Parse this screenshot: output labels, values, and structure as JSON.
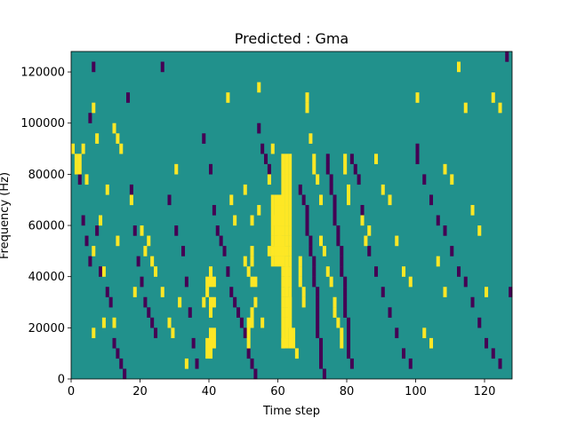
{
  "chart_data": {
    "type": "heatmap",
    "title": "Predicted : Gma",
    "xlabel": "Time step",
    "ylabel": "Frequency (Hz)",
    "xlim": [
      0,
      128
    ],
    "ylim": [
      0,
      128000
    ],
    "x_ticks": [
      0,
      20,
      40,
      60,
      80,
      100,
      120
    ],
    "x_tick_labels": [
      "0",
      "20",
      "40",
      "60",
      "80",
      "100",
      "120"
    ],
    "y_ticks": [
      0,
      20000,
      40000,
      60000,
      80000,
      100000,
      120000
    ],
    "y_tick_labels": [
      "0",
      "20000",
      "40000",
      "60000",
      "80000",
      "100000",
      "120000"
    ],
    "grid": false,
    "colormap": "viridis",
    "colors": {
      "background": "#21918c",
      "low": "#440154",
      "high": "#fde725"
    },
    "bin_size": {
      "time": 1,
      "frequency": 4000
    },
    "high_bins": [
      [
        0,
        88000
      ],
      [
        1,
        84000
      ],
      [
        1,
        80000
      ],
      [
        2,
        84000
      ],
      [
        2,
        80000
      ],
      [
        3,
        88000
      ],
      [
        4,
        76000
      ],
      [
        6,
        104000
      ],
      [
        6,
        48000
      ],
      [
        6,
        16000
      ],
      [
        7,
        92000
      ],
      [
        8,
        60000
      ],
      [
        9,
        40000
      ],
      [
        9,
        20000
      ],
      [
        10,
        72000
      ],
      [
        12,
        96000
      ],
      [
        12,
        20000
      ],
      [
        13,
        92000
      ],
      [
        13,
        52000
      ],
      [
        14,
        88000
      ],
      [
        17,
        68000
      ],
      [
        18,
        32000
      ],
      [
        20,
        56000
      ],
      [
        21,
        48000
      ],
      [
        22,
        52000
      ],
      [
        23,
        44000
      ],
      [
        24,
        40000
      ],
      [
        26,
        32000
      ],
      [
        28,
        20000
      ],
      [
        29,
        16000
      ],
      [
        30,
        80000
      ],
      [
        31,
        28000
      ],
      [
        33,
        4000
      ],
      [
        38,
        28000
      ],
      [
        39,
        36000
      ],
      [
        39,
        32000
      ],
      [
        39,
        12000
      ],
      [
        39,
        8000
      ],
      [
        40,
        40000
      ],
      [
        40,
        36000
      ],
      [
        40,
        28000
      ],
      [
        40,
        24000
      ],
      [
        40,
        16000
      ],
      [
        40,
        12000
      ],
      [
        40,
        8000
      ],
      [
        41,
        36000
      ],
      [
        41,
        28000
      ],
      [
        41,
        16000
      ],
      [
        41,
        12000
      ],
      [
        45,
        108000
      ],
      [
        46,
        68000
      ],
      [
        47,
        60000
      ],
      [
        50,
        72000
      ],
      [
        50,
        44000
      ],
      [
        51,
        40000
      ],
      [
        51,
        20000
      ],
      [
        51,
        16000
      ],
      [
        51,
        12000
      ],
      [
        52,
        60000
      ],
      [
        52,
        48000
      ],
      [
        52,
        44000
      ],
      [
        52,
        36000
      ],
      [
        52,
        24000
      ],
      [
        52,
        20000
      ],
      [
        53,
        36000
      ],
      [
        53,
        28000
      ],
      [
        54,
        112000
      ],
      [
        54,
        64000
      ],
      [
        55,
        20000
      ],
      [
        57,
        76000
      ],
      [
        57,
        48000
      ],
      [
        58,
        88000
      ],
      [
        59,
        60000
      ],
      [
        59,
        48000
      ],
      [
        60,
        52000
      ],
      [
        60,
        48000
      ],
      [
        61,
        48000
      ],
      [
        61,
        12000
      ],
      [
        62,
        40000
      ],
      [
        62,
        36000
      ],
      [
        63,
        28000
      ],
      [
        63,
        24000
      ],
      [
        63,
        20000
      ],
      [
        64,
        16000
      ],
      [
        64,
        12000
      ],
      [
        65,
        8000
      ],
      [
        66,
        44000
      ],
      [
        66,
        40000
      ],
      [
        66,
        36000
      ],
      [
        67,
        32000
      ],
      [
        67,
        28000
      ],
      [
        68,
        108000
      ],
      [
        68,
        104000
      ],
      [
        69,
        92000
      ],
      [
        70,
        84000
      ],
      [
        70,
        80000
      ],
      [
        71,
        76000
      ],
      [
        72,
        68000
      ],
      [
        72,
        52000
      ],
      [
        73,
        48000
      ],
      [
        74,
        40000
      ],
      [
        75,
        36000
      ],
      [
        76,
        28000
      ],
      [
        76,
        24000
      ],
      [
        77,
        20000
      ],
      [
        78,
        16000
      ],
      [
        78,
        12000
      ],
      [
        79,
        84000
      ],
      [
        79,
        80000
      ],
      [
        80,
        72000
      ],
      [
        80,
        68000
      ],
      [
        84,
        60000
      ],
      [
        85,
        52000
      ],
      [
        86,
        56000
      ],
      [
        88,
        84000
      ],
      [
        90,
        72000
      ],
      [
        92,
        68000
      ],
      [
        94,
        52000
      ],
      [
        96,
        40000
      ],
      [
        98,
        36000
      ],
      [
        100,
        108000
      ],
      [
        102,
        16000
      ],
      [
        104,
        12000
      ],
      [
        106,
        44000
      ],
      [
        108,
        32000
      ],
      [
        108,
        80000
      ],
      [
        110,
        76000
      ],
      [
        112,
        120000
      ],
      [
        114,
        104000
      ],
      [
        116,
        64000
      ],
      [
        118,
        56000
      ],
      [
        120,
        32000
      ],
      [
        122,
        108000
      ],
      [
        124,
        104000
      ]
    ],
    "low_bins": [
      [
        2,
        76000
      ],
      [
        3,
        60000
      ],
      [
        4,
        52000
      ],
      [
        5,
        100000
      ],
      [
        5,
        44000
      ],
      [
        6,
        120000
      ],
      [
        7,
        56000
      ],
      [
        8,
        40000
      ],
      [
        10,
        32000
      ],
      [
        11,
        28000
      ],
      [
        12,
        12000
      ],
      [
        13,
        8000
      ],
      [
        14,
        4000
      ],
      [
        15,
        0
      ],
      [
        16,
        108000
      ],
      [
        17,
        72000
      ],
      [
        18,
        56000
      ],
      [
        19,
        44000
      ],
      [
        20,
        36000
      ],
      [
        21,
        28000
      ],
      [
        22,
        24000
      ],
      [
        23,
        20000
      ],
      [
        24,
        16000
      ],
      [
        26,
        120000
      ],
      [
        28,
        68000
      ],
      [
        30,
        56000
      ],
      [
        32,
        48000
      ],
      [
        33,
        36000
      ],
      [
        34,
        24000
      ],
      [
        35,
        12000
      ],
      [
        36,
        4000
      ],
      [
        38,
        92000
      ],
      [
        40,
        80000
      ],
      [
        41,
        64000
      ],
      [
        42,
        56000
      ],
      [
        43,
        52000
      ],
      [
        44,
        48000
      ],
      [
        45,
        40000
      ],
      [
        46,
        32000
      ],
      [
        47,
        28000
      ],
      [
        48,
        24000
      ],
      [
        49,
        20000
      ],
      [
        50,
        16000
      ],
      [
        51,
        8000
      ],
      [
        52,
        4000
      ],
      [
        53,
        0
      ],
      [
        54,
        96000
      ],
      [
        55,
        88000
      ],
      [
        56,
        84000
      ],
      [
        57,
        80000
      ],
      [
        66,
        72000
      ],
      [
        67,
        68000
      ],
      [
        68,
        64000
      ],
      [
        68,
        60000
      ],
      [
        68,
        56000
      ],
      [
        69,
        52000
      ],
      [
        69,
        48000
      ],
      [
        70,
        44000
      ],
      [
        70,
        40000
      ],
      [
        70,
        36000
      ],
      [
        71,
        32000
      ],
      [
        71,
        28000
      ],
      [
        71,
        24000
      ],
      [
        71,
        20000
      ],
      [
        71,
        16000
      ],
      [
        72,
        12000
      ],
      [
        72,
        8000
      ],
      [
        72,
        4000
      ],
      [
        73,
        0
      ],
      [
        74,
        84000
      ],
      [
        74,
        80000
      ],
      [
        75,
        76000
      ],
      [
        75,
        72000
      ],
      [
        76,
        68000
      ],
      [
        76,
        64000
      ],
      [
        76,
        60000
      ],
      [
        77,
        56000
      ],
      [
        77,
        52000
      ],
      [
        78,
        48000
      ],
      [
        78,
        44000
      ],
      [
        78,
        40000
      ],
      [
        79,
        36000
      ],
      [
        79,
        32000
      ],
      [
        79,
        28000
      ],
      [
        79,
        24000
      ],
      [
        80,
        20000
      ],
      [
        80,
        16000
      ],
      [
        80,
        12000
      ],
      [
        80,
        8000
      ],
      [
        81,
        4000
      ],
      [
        81,
        84000
      ],
      [
        82,
        80000
      ],
      [
        83,
        76000
      ],
      [
        84,
        64000
      ],
      [
        86,
        48000
      ],
      [
        88,
        40000
      ],
      [
        90,
        32000
      ],
      [
        92,
        24000
      ],
      [
        94,
        16000
      ],
      [
        96,
        8000
      ],
      [
        98,
        4000
      ],
      [
        100,
        88000
      ],
      [
        100,
        84000
      ],
      [
        102,
        76000
      ],
      [
        104,
        68000
      ],
      [
        106,
        60000
      ],
      [
        108,
        56000
      ],
      [
        110,
        48000
      ],
      [
        112,
        40000
      ],
      [
        114,
        36000
      ],
      [
        116,
        28000
      ],
      [
        118,
        20000
      ],
      [
        120,
        12000
      ],
      [
        122,
        8000
      ],
      [
        124,
        4000
      ],
      [
        126,
        124000
      ],
      [
        127,
        32000
      ]
    ]
  }
}
